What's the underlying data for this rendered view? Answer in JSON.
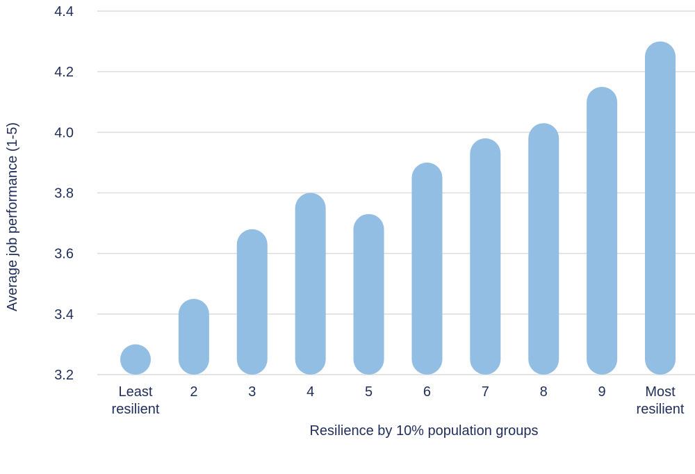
{
  "chart_data": {
    "type": "bar",
    "title": "",
    "xlabel": "Resilience by 10% population groups",
    "ylabel": "Average job performance (1-5)",
    "ylim": [
      3.2,
      4.4
    ],
    "yticks": [
      "3.2",
      "3.4",
      "3.6",
      "3.8",
      "4.0",
      "4.2",
      "4.4"
    ],
    "grid": true,
    "categories": [
      [
        "Least",
        "resilient"
      ],
      [
        "2"
      ],
      [
        "3"
      ],
      [
        "4"
      ],
      [
        "5"
      ],
      [
        "6"
      ],
      [
        "7"
      ],
      [
        "8"
      ],
      [
        "9"
      ],
      [
        "Most",
        "resilient"
      ]
    ],
    "values": [
      3.3,
      3.45,
      3.68,
      3.8,
      3.73,
      3.9,
      3.98,
      4.03,
      4.15,
      4.3
    ],
    "bar_color": "#93bee3",
    "grid_color": "#dcdcdc",
    "text_color": "#1f2d5a"
  }
}
